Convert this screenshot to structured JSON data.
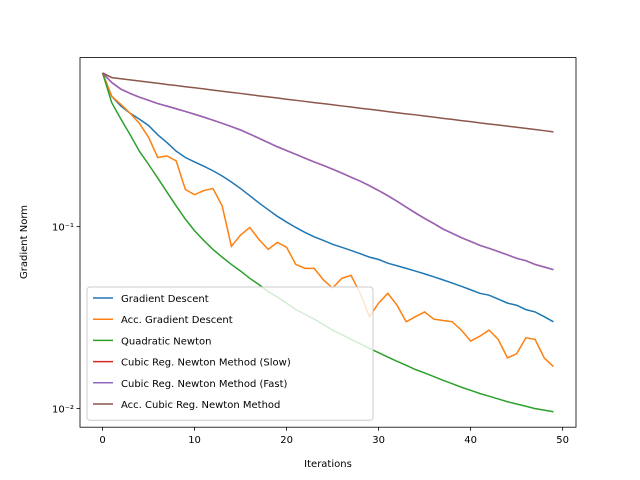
{
  "chart_data": {
    "type": "line",
    "xlabel": "Iterations",
    "ylabel": "Gradient Norm",
    "x": [
      0,
      1,
      2,
      3,
      4,
      5,
      6,
      7,
      8,
      9,
      10,
      11,
      12,
      13,
      14,
      15,
      16,
      17,
      18,
      19,
      20,
      21,
      22,
      23,
      24,
      25,
      26,
      27,
      28,
      29,
      30,
      31,
      32,
      33,
      34,
      35,
      36,
      37,
      38,
      39,
      40,
      41,
      42,
      43,
      44,
      45,
      46,
      47,
      48,
      49
    ],
    "xlim": [
      -2.45,
      51.45
    ],
    "xticks": [
      0,
      10,
      20,
      30,
      40,
      50
    ],
    "ylim": [
      0.0079,
      0.85
    ],
    "log_y": true,
    "yticks": [
      {
        "value": 0.01,
        "label": "10⁻²"
      },
      {
        "value": 0.1,
        "label": "10⁻¹"
      }
    ],
    "legend": "lower left",
    "series": [
      {
        "name": "Gradient Descent",
        "color": "#1f77b4",
        "values": [
          0.7,
          0.52,
          0.46,
          0.42,
          0.39,
          0.36,
          0.32,
          0.29,
          0.26,
          0.24,
          0.227,
          0.215,
          0.203,
          0.19,
          0.176,
          0.162,
          0.148,
          0.135,
          0.124,
          0.114,
          0.106,
          0.099,
          0.093,
          0.088,
          0.084,
          0.08,
          0.077,
          0.074,
          0.071,
          0.068,
          0.066,
          0.063,
          0.061,
          0.059,
          0.057,
          0.055,
          0.053,
          0.051,
          0.049,
          0.047,
          0.045,
          0.043,
          0.042,
          0.04,
          0.038,
          0.037,
          0.035,
          0.034,
          0.032,
          0.03
        ]
      },
      {
        "name": "Acc. Gradient Descent",
        "color": "#ff7f0e",
        "values": [
          0.7,
          0.52,
          0.47,
          0.42,
          0.37,
          0.31,
          0.24,
          0.245,
          0.23,
          0.16,
          0.15,
          0.158,
          0.162,
          0.13,
          0.078,
          0.09,
          0.099,
          0.085,
          0.075,
          0.082,
          0.077,
          0.062,
          0.059,
          0.059,
          0.051,
          0.046,
          0.052,
          0.054,
          0.043,
          0.032,
          0.038,
          0.043,
          0.037,
          0.03,
          0.032,
          0.034,
          0.031,
          0.0305,
          0.03,
          0.027,
          0.0235,
          0.025,
          0.027,
          0.024,
          0.019,
          0.02,
          0.0245,
          0.024,
          0.019,
          0.017
        ]
      },
      {
        "name": "Quadratic Newton",
        "color": "#2ca02c",
        "values": [
          0.7,
          0.48,
          0.39,
          0.32,
          0.26,
          0.22,
          0.185,
          0.155,
          0.13,
          0.11,
          0.095,
          0.084,
          0.075,
          0.068,
          0.062,
          0.057,
          0.052,
          0.048,
          0.044,
          0.041,
          0.038,
          0.035,
          0.033,
          0.031,
          0.029,
          0.027,
          0.0255,
          0.024,
          0.0227,
          0.0214,
          0.0203,
          0.0192,
          0.0182,
          0.0173,
          0.0164,
          0.0157,
          0.015,
          0.0143,
          0.0137,
          0.0131,
          0.0126,
          0.0121,
          0.0117,
          0.0113,
          0.0109,
          0.0106,
          0.0103,
          0.01,
          0.0098,
          0.0096
        ]
      },
      {
        "name": "Cubic Reg. Newton Method (Slow)",
        "color": "#d62728",
        "values": [
          0.7,
          0.62,
          0.57,
          0.54,
          0.515,
          0.495,
          0.475,
          0.46,
          0.445,
          0.43,
          0.415,
          0.4,
          0.385,
          0.37,
          0.355,
          0.34,
          0.323,
          0.306,
          0.29,
          0.275,
          0.262,
          0.25,
          0.238,
          0.227,
          0.217,
          0.207,
          0.197,
          0.187,
          0.178,
          0.168,
          0.158,
          0.148,
          0.138,
          0.128,
          0.119,
          0.111,
          0.104,
          0.097,
          0.092,
          0.087,
          0.083,
          0.079,
          0.076,
          0.073,
          0.07,
          0.067,
          0.065,
          0.062,
          0.06,
          0.058
        ]
      },
      {
        "name": "Cubic Reg. Newton Method (Fast)",
        "color": "#9467bd",
        "values": [
          0.7,
          0.62,
          0.57,
          0.54,
          0.515,
          0.495,
          0.475,
          0.46,
          0.445,
          0.43,
          0.415,
          0.4,
          0.385,
          0.37,
          0.355,
          0.34,
          0.323,
          0.306,
          0.29,
          0.275,
          0.262,
          0.25,
          0.238,
          0.227,
          0.217,
          0.207,
          0.197,
          0.187,
          0.178,
          0.168,
          0.158,
          0.148,
          0.138,
          0.128,
          0.119,
          0.111,
          0.104,
          0.097,
          0.092,
          0.087,
          0.083,
          0.079,
          0.076,
          0.073,
          0.07,
          0.067,
          0.065,
          0.062,
          0.06,
          0.058
        ]
      },
      {
        "name": "Acc. Cubic Reg. Newton Method",
        "color": "#8c564b",
        "values": [
          0.7,
          0.66,
          0.65,
          0.641,
          0.632,
          0.623,
          0.614,
          0.605,
          0.597,
          0.588,
          0.58,
          0.572,
          0.563,
          0.555,
          0.547,
          0.54,
          0.532,
          0.524,
          0.517,
          0.51,
          0.502,
          0.495,
          0.488,
          0.481,
          0.475,
          0.468,
          0.461,
          0.455,
          0.448,
          0.442,
          0.436,
          0.429,
          0.423,
          0.417,
          0.412,
          0.406,
          0.4,
          0.394,
          0.389,
          0.383,
          0.378,
          0.372,
          0.367,
          0.362,
          0.357,
          0.352,
          0.347,
          0.342,
          0.337,
          0.332
        ]
      }
    ]
  }
}
